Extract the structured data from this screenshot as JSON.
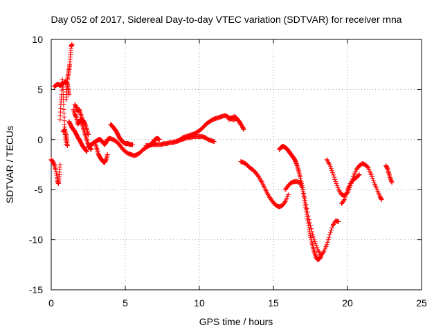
{
  "chart_data": {
    "type": "scatter",
    "title": "Day 052 of 2017, Sidereal Day-to-day VTEC variation (SDTVAR) for receiver rnna",
    "xlabel": "GPS time / hours",
    "ylabel": "SDTVAR / TECUs",
    "xlim": [
      0,
      25
    ],
    "ylim": [
      -15,
      10
    ],
    "xticks": [
      0,
      5,
      10,
      15,
      20,
      25
    ],
    "yticks": [
      -15,
      -10,
      -5,
      0,
      5,
      10
    ],
    "xtick_labels": [
      "0",
      "5",
      "10",
      "15",
      "20",
      "25"
    ],
    "ytick_labels": [
      "-15",
      "-10",
      "-5",
      "0",
      "5",
      "10"
    ],
    "grid": true,
    "marker": "+",
    "color": "#ff0000",
    "series": [
      {
        "name": "SDTVAR",
        "segments": [
          {
            "x": [
              0.0,
              0.1,
              0.2,
              0.3,
              0.4,
              0.45,
              0.5,
              0.55,
              0.6
            ],
            "y": [
              -2.0,
              -2.2,
              -2.5,
              -3.0,
              -3.8,
              -4.3,
              -4.4,
              -3.5,
              -2.5
            ]
          },
          {
            "x": [
              0.2,
              0.3,
              0.4,
              0.5,
              0.6,
              0.7,
              0.8,
              0.9,
              1.0,
              1.1,
              1.15,
              1.2
            ],
            "y": [
              5.3,
              5.4,
              5.5,
              5.5,
              5.4,
              5.5,
              5.6,
              5.7,
              5.8,
              5.5,
              5.0,
              4.5
            ]
          },
          {
            "x": [
              0.6,
              0.65,
              0.7,
              0.75,
              0.8,
              0.85,
              0.9,
              0.95,
              1.0
            ],
            "y": [
              2.0,
              3.5,
              4.5,
              6.0,
              5.0,
              3.0,
              1.5,
              0.5,
              -0.5
            ]
          },
          {
            "x": [
              0.8,
              0.9,
              1.0,
              1.05,
              1.1
            ],
            "y": [
              0.8,
              1.0,
              0.5,
              0.0,
              -0.6
            ]
          },
          {
            "x": [
              1.0,
              1.05,
              1.1,
              1.15,
              1.2,
              1.25,
              1.3,
              1.35,
              1.4
            ],
            "y": [
              4.0,
              5.0,
              6.0,
              6.5,
              7.0,
              7.5,
              8.5,
              9.3,
              9.5
            ]
          },
          {
            "x": [
              1.2,
              1.3,
              1.4,
              1.5,
              1.6,
              1.7,
              1.8,
              1.9,
              2.0,
              2.1,
              2.2,
              2.3,
              2.4
            ],
            "y": [
              1.8,
              1.5,
              1.2,
              1.0,
              0.8,
              0.5,
              0.2,
              0.0,
              -0.3,
              -0.6,
              -0.8,
              -1.0,
              -1.2
            ]
          },
          {
            "x": [
              1.5,
              1.6,
              1.7,
              1.8,
              1.9,
              2.0,
              2.1,
              2.2,
              2.3,
              2.4,
              2.5,
              2.6,
              2.7
            ],
            "y": [
              3.0,
              2.5,
              2.2,
              1.5,
              1.8,
              2.0,
              1.5,
              1.0,
              0.5,
              0.0,
              -0.5,
              -0.8,
              -1.0
            ]
          },
          {
            "x": [
              1.6,
              1.7,
              1.8,
              1.9,
              2.0,
              2.1,
              2.2,
              2.3,
              2.4,
              2.5
            ],
            "y": [
              3.5,
              3.2,
              2.8,
              3.0,
              2.5,
              2.0,
              1.8,
              1.5,
              1.0,
              0.5
            ]
          },
          {
            "x": [
              2.5,
              2.6,
              2.7,
              2.8,
              2.9,
              3.0,
              3.1,
              3.2,
              3.3,
              3.4,
              3.5,
              3.6,
              3.7,
              3.8,
              3.9,
              4.0,
              4.2,
              4.4,
              4.6,
              4.8,
              5.0,
              5.2,
              5.4,
              5.6,
              5.8,
              6.0,
              6.2,
              6.4,
              6.6,
              6.8,
              7.0
            ],
            "y": [
              -0.8,
              -0.6,
              -0.5,
              -0.4,
              -0.3,
              -0.2,
              -0.1,
              0.0,
              0.0,
              -0.1,
              -0.3,
              -0.5,
              -0.3,
              0.0,
              0.1,
              0.1,
              0.0,
              -0.2,
              -0.5,
              -0.9,
              -1.2,
              -1.4,
              -1.5,
              -1.6,
              -1.5,
              -1.3,
              -1.0,
              -0.8,
              -0.6,
              -0.5,
              -0.4
            ]
          },
          {
            "x": [
              3.0,
              3.1,
              3.2,
              3.3,
              3.4,
              3.5,
              3.6,
              3.7,
              3.8
            ],
            "y": [
              -0.5,
              -1.0,
              -1.5,
              -1.8,
              -2.0,
              -2.2,
              -2.3,
              -2.0,
              -1.5
            ]
          },
          {
            "x": [
              4.0,
              4.1,
              4.2,
              4.3,
              4.4,
              4.5,
              4.6,
              4.7,
              4.8,
              4.9,
              5.0,
              5.1,
              5.2,
              5.3,
              5.4,
              5.5
            ],
            "y": [
              1.5,
              1.4,
              1.2,
              1.0,
              0.8,
              0.5,
              0.2,
              0.0,
              -0.2,
              -0.3,
              -0.4,
              -0.4,
              -0.4,
              -0.5,
              -0.5,
              -0.5
            ]
          },
          {
            "x": [
              6.4,
              6.6,
              6.8,
              7.0,
              7.2,
              7.4,
              7.6,
              7.8,
              8.0,
              8.2,
              8.4,
              8.6,
              8.8,
              9.0,
              9.2,
              9.4,
              9.6,
              9.8,
              10.0,
              10.2,
              10.4,
              10.6,
              10.8,
              11.0
            ],
            "y": [
              -0.6,
              -0.6,
              -0.5,
              -0.5,
              -0.5,
              -0.5,
              -0.4,
              -0.4,
              -0.3,
              -0.3,
              -0.2,
              -0.1,
              0.0,
              0.1,
              0.2,
              0.2,
              0.3,
              0.3,
              0.3,
              0.3,
              0.2,
              0.0,
              -0.1,
              -0.2
            ]
          },
          {
            "x": [
              6.8,
              6.9,
              7.0,
              7.1,
              7.2,
              7.3
            ],
            "y": [
              -0.3,
              -0.2,
              0.0,
              0.1,
              0.1,
              0.0
            ]
          },
          {
            "x": [
              8.5,
              8.7,
              8.9,
              9.1,
              9.3,
              9.5,
              9.7,
              9.9,
              10.1,
              10.3,
              10.5,
              10.7,
              10.9,
              11.1,
              11.3,
              11.5,
              11.7,
              11.9,
              12.1,
              12.3,
              12.5,
              12.7,
              12.9,
              13.0
            ],
            "y": [
              -0.2,
              0.0,
              0.2,
              0.3,
              0.4,
              0.5,
              0.6,
              0.8,
              1.0,
              1.3,
              1.6,
              1.8,
              2.0,
              2.1,
              2.2,
              2.3,
              2.4,
              2.3,
              2.1,
              2.0,
              2.1,
              1.8,
              1.3,
              1.0
            ]
          },
          {
            "x": [
              12.0,
              12.2,
              12.4,
              12.6,
              12.8
            ],
            "y": [
              2.0,
              2.2,
              2.3,
              2.0,
              1.5
            ]
          },
          {
            "x": [
              12.8,
              13.0,
              13.2,
              13.4,
              13.6,
              13.8,
              14.0,
              14.2,
              14.4,
              14.6,
              14.8,
              15.0,
              15.2,
              15.4,
              15.6,
              15.8,
              16.0
            ],
            "y": [
              -2.2,
              -2.3,
              -2.5,
              -2.8,
              -3.0,
              -3.3,
              -3.7,
              -4.2,
              -4.8,
              -5.4,
              -5.9,
              -6.3,
              -6.6,
              -6.7,
              -6.6,
              -6.2,
              -5.5
            ]
          },
          {
            "x": [
              15.4,
              15.5,
              15.6,
              15.7,
              15.8,
              15.9,
              16.0,
              16.1,
              16.2,
              16.3,
              16.4,
              16.5,
              16.6,
              16.7,
              16.8,
              16.9,
              17.0,
              17.1,
              17.2,
              17.3,
              17.4,
              17.5,
              17.6,
              17.7,
              17.8,
              17.9,
              18.0,
              18.1,
              18.2
            ],
            "y": [
              -1.0,
              -0.8,
              -0.7,
              -0.7,
              -0.8,
              -0.9,
              -1.1,
              -1.3,
              -1.5,
              -1.7,
              -1.9,
              -2.2,
              -2.6,
              -3.1,
              -3.7,
              -4.4,
              -5.2,
              -6.1,
              -7.0,
              -7.9,
              -8.8,
              -9.6,
              -10.3,
              -10.9,
              -11.4,
              -11.8,
              -12.0,
              -11.9,
              -11.7
            ]
          },
          {
            "x": [
              15.8,
              16.0,
              16.2,
              16.4,
              16.6,
              16.8,
              17.0,
              17.2,
              17.4,
              17.6,
              17.8,
              18.0,
              18.2,
              18.4,
              18.6,
              18.8,
              19.0,
              19.2,
              19.4
            ],
            "y": [
              -5.0,
              -4.6,
              -4.3,
              -4.2,
              -4.2,
              -4.3,
              -5.0,
              -6.5,
              -8.0,
              -9.2,
              -10.2,
              -11.0,
              -11.6,
              -11.2,
              -10.5,
              -9.5,
              -8.6,
              -8.1,
              -8.2
            ]
          },
          {
            "x": [
              18.6,
              18.8,
              19.0,
              19.2,
              19.4,
              19.6,
              19.8,
              20.0,
              20.2,
              20.4,
              20.6,
              20.8,
              21.0,
              21.2,
              21.4,
              21.6,
              21.8,
              22.0,
              22.2,
              22.3
            ],
            "y": [
              -2.0,
              -2.5,
              -3.3,
              -4.2,
              -5.0,
              -5.5,
              -5.6,
              -5.3,
              -4.6,
              -3.7,
              -3.0,
              -2.6,
              -2.4,
              -2.5,
              -2.8,
              -3.5,
              -4.3,
              -5.0,
              -5.7,
              -6.0
            ]
          },
          {
            "x": [
              19.6,
              19.8,
              20.0,
              20.2,
              20.4,
              20.6,
              20.8
            ],
            "y": [
              -6.4,
              -6.0,
              -5.0,
              -4.4,
              -4.0,
              -3.8,
              -3.5
            ]
          },
          {
            "x": [
              22.6,
              22.7,
              22.8,
              22.9,
              23.0
            ],
            "y": [
              -2.6,
              -2.9,
              -3.4,
              -3.9,
              -4.3
            ]
          }
        ]
      }
    ]
  }
}
